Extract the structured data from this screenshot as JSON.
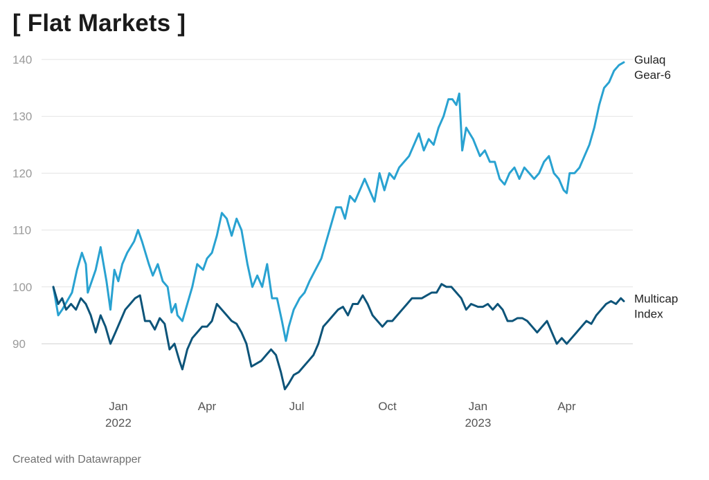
{
  "page": {
    "title": "[ Flat Markets ]",
    "footer": "Created with Datawrapper"
  },
  "chart_data": {
    "type": "line",
    "title": "[ Flat Markets ]",
    "xlabel": "",
    "ylabel": "",
    "ylim": [
      80,
      140
    ],
    "x_range": [
      "2021-10-27",
      "2023-05-29"
    ],
    "y_ticks": [
      90,
      100,
      110,
      120,
      130,
      140
    ],
    "x_ticks": [
      {
        "date": "2022-01-01",
        "label": "Jan",
        "year": "2022"
      },
      {
        "date": "2022-04-01",
        "label": "Apr",
        "year": ""
      },
      {
        "date": "2022-07-01",
        "label": "Jul",
        "year": ""
      },
      {
        "date": "2022-10-01",
        "label": "Oct",
        "year": ""
      },
      {
        "date": "2023-01-01",
        "label": "Jan",
        "year": "2023"
      },
      {
        "date": "2023-04-01",
        "label": "Apr",
        "year": ""
      }
    ],
    "grid": true,
    "legend": "direct labels at line ends (right)",
    "series": [
      {
        "name": "Gulaq Gear-6",
        "label_lines": [
          "Gulaq",
          "Gear-6"
        ],
        "color": "#29a2d1",
        "points": [
          [
            "2021-10-27",
            100
          ],
          [
            "2021-11-01",
            95
          ],
          [
            "2021-11-05",
            96
          ],
          [
            "2021-11-10",
            97.5
          ],
          [
            "2021-11-15",
            99
          ],
          [
            "2021-11-20",
            103
          ],
          [
            "2021-11-25",
            106
          ],
          [
            "2021-11-29",
            104
          ],
          [
            "2021-12-01",
            99
          ],
          [
            "2021-12-05",
            101
          ],
          [
            "2021-12-09",
            103
          ],
          [
            "2021-12-14",
            107
          ],
          [
            "2021-12-20",
            101
          ],
          [
            "2021-12-24",
            96
          ],
          [
            "2021-12-28",
            103
          ],
          [
            "2022-01-01",
            101
          ],
          [
            "2022-01-05",
            104
          ],
          [
            "2022-01-10",
            106
          ],
          [
            "2022-01-17",
            108
          ],
          [
            "2022-01-21",
            110
          ],
          [
            "2022-01-25",
            108
          ],
          [
            "2022-02-01",
            104
          ],
          [
            "2022-02-05",
            102
          ],
          [
            "2022-02-10",
            104
          ],
          [
            "2022-02-15",
            101
          ],
          [
            "2022-02-20",
            100
          ],
          [
            "2022-02-24",
            95.5
          ],
          [
            "2022-02-28",
            97
          ],
          [
            "2022-03-02",
            95
          ],
          [
            "2022-03-07",
            94
          ],
          [
            "2022-03-12",
            97
          ],
          [
            "2022-03-17",
            100
          ],
          [
            "2022-03-22",
            104
          ],
          [
            "2022-03-28",
            103
          ],
          [
            "2022-04-01",
            105
          ],
          [
            "2022-04-06",
            106
          ],
          [
            "2022-04-11",
            109
          ],
          [
            "2022-04-16",
            113
          ],
          [
            "2022-04-21",
            112
          ],
          [
            "2022-04-26",
            109
          ],
          [
            "2022-05-01",
            112
          ],
          [
            "2022-05-06",
            110
          ],
          [
            "2022-05-12",
            104
          ],
          [
            "2022-05-17",
            100
          ],
          [
            "2022-05-22",
            102
          ],
          [
            "2022-05-27",
            100
          ],
          [
            "2022-06-01",
            104
          ],
          [
            "2022-06-06",
            98
          ],
          [
            "2022-06-11",
            98
          ],
          [
            "2022-06-16",
            94
          ],
          [
            "2022-06-20",
            90.5
          ],
          [
            "2022-06-23",
            93
          ],
          [
            "2022-06-28",
            96
          ],
          [
            "2022-07-04",
            98
          ],
          [
            "2022-07-09",
            99
          ],
          [
            "2022-07-14",
            101
          ],
          [
            "2022-07-20",
            103
          ],
          [
            "2022-07-26",
            105
          ],
          [
            "2022-07-31",
            108
          ],
          [
            "2022-08-05",
            111
          ],
          [
            "2022-08-10",
            114
          ],
          [
            "2022-08-15",
            114
          ],
          [
            "2022-08-19",
            112
          ],
          [
            "2022-08-24",
            116
          ],
          [
            "2022-08-29",
            115
          ],
          [
            "2022-09-03",
            117
          ],
          [
            "2022-09-08",
            119
          ],
          [
            "2022-09-13",
            117
          ],
          [
            "2022-09-18",
            115
          ],
          [
            "2022-09-23",
            120
          ],
          [
            "2022-09-28",
            117
          ],
          [
            "2022-10-03",
            120
          ],
          [
            "2022-10-08",
            119
          ],
          [
            "2022-10-13",
            121
          ],
          [
            "2022-10-18",
            122
          ],
          [
            "2022-10-23",
            123
          ],
          [
            "2022-10-28",
            125
          ],
          [
            "2022-11-02",
            127
          ],
          [
            "2022-11-07",
            124
          ],
          [
            "2022-11-12",
            126
          ],
          [
            "2022-11-17",
            125
          ],
          [
            "2022-11-22",
            128
          ],
          [
            "2022-11-27",
            130
          ],
          [
            "2022-12-02",
            133
          ],
          [
            "2022-12-06",
            133
          ],
          [
            "2022-12-10",
            132
          ],
          [
            "2022-12-13",
            134
          ],
          [
            "2022-12-16",
            124
          ],
          [
            "2022-12-20",
            128
          ],
          [
            "2022-12-27",
            126
          ],
          [
            "2023-01-03",
            123
          ],
          [
            "2023-01-08",
            124
          ],
          [
            "2023-01-13",
            122
          ],
          [
            "2023-01-18",
            122
          ],
          [
            "2023-01-23",
            119
          ],
          [
            "2023-01-28",
            118
          ],
          [
            "2023-02-02",
            120
          ],
          [
            "2023-02-07",
            121
          ],
          [
            "2023-02-12",
            119
          ],
          [
            "2023-02-17",
            121
          ],
          [
            "2023-02-22",
            120
          ],
          [
            "2023-02-27",
            119
          ],
          [
            "2023-03-04",
            120
          ],
          [
            "2023-03-09",
            122
          ],
          [
            "2023-03-14",
            123
          ],
          [
            "2023-03-19",
            120
          ],
          [
            "2023-03-24",
            119
          ],
          [
            "2023-03-29",
            117
          ],
          [
            "2023-04-01",
            116.5
          ],
          [
            "2023-04-04",
            120
          ],
          [
            "2023-04-09",
            120
          ],
          [
            "2023-04-14",
            121
          ],
          [
            "2023-04-19",
            123
          ],
          [
            "2023-04-24",
            125
          ],
          [
            "2023-04-29",
            128
          ],
          [
            "2023-05-04",
            132
          ],
          [
            "2023-05-09",
            135
          ],
          [
            "2023-05-14",
            136
          ],
          [
            "2023-05-19",
            138
          ],
          [
            "2023-05-24",
            139
          ],
          [
            "2023-05-29",
            139.5
          ]
        ]
      },
      {
        "name": "Multicap Index",
        "label_lines": [
          "Multicap",
          "Index"
        ],
        "color": "#0d5479",
        "points": [
          [
            "2021-10-27",
            100
          ],
          [
            "2021-11-01",
            97
          ],
          [
            "2021-11-05",
            98
          ],
          [
            "2021-11-09",
            96
          ],
          [
            "2021-11-14",
            97
          ],
          [
            "2021-11-19",
            96
          ],
          [
            "2021-11-24",
            98
          ],
          [
            "2021-11-29",
            97
          ],
          [
            "2021-12-04",
            95
          ],
          [
            "2021-12-09",
            92
          ],
          [
            "2021-12-14",
            95
          ],
          [
            "2021-12-19",
            93
          ],
          [
            "2021-12-24",
            90
          ],
          [
            "2021-12-29",
            92
          ],
          [
            "2022-01-03",
            94
          ],
          [
            "2022-01-08",
            96
          ],
          [
            "2022-01-13",
            97
          ],
          [
            "2022-01-18",
            98
          ],
          [
            "2022-01-23",
            98.5
          ],
          [
            "2022-01-28",
            94
          ],
          [
            "2022-02-02",
            94
          ],
          [
            "2022-02-07",
            92.5
          ],
          [
            "2022-02-12",
            94.5
          ],
          [
            "2022-02-17",
            93.5
          ],
          [
            "2022-02-22",
            89
          ],
          [
            "2022-02-27",
            90
          ],
          [
            "2022-03-04",
            87
          ],
          [
            "2022-03-07",
            85.5
          ],
          [
            "2022-03-12",
            89
          ],
          [
            "2022-03-17",
            91
          ],
          [
            "2022-03-22",
            92
          ],
          [
            "2022-03-27",
            93
          ],
          [
            "2022-04-01",
            93
          ],
          [
            "2022-04-06",
            94
          ],
          [
            "2022-04-11",
            97
          ],
          [
            "2022-04-16",
            96
          ],
          [
            "2022-04-21",
            95
          ],
          [
            "2022-04-26",
            94
          ],
          [
            "2022-05-01",
            93.5
          ],
          [
            "2022-05-06",
            92
          ],
          [
            "2022-05-11",
            90
          ],
          [
            "2022-05-16",
            86
          ],
          [
            "2022-05-21",
            86.5
          ],
          [
            "2022-05-26",
            87
          ],
          [
            "2022-05-31",
            88
          ],
          [
            "2022-06-05",
            89
          ],
          [
            "2022-06-10",
            88
          ],
          [
            "2022-06-15",
            85
          ],
          [
            "2022-06-19",
            82
          ],
          [
            "2022-06-23",
            83
          ],
          [
            "2022-06-28",
            84.5
          ],
          [
            "2022-07-03",
            85
          ],
          [
            "2022-07-08",
            86
          ],
          [
            "2022-07-13",
            87
          ],
          [
            "2022-07-18",
            88
          ],
          [
            "2022-07-23",
            90
          ],
          [
            "2022-07-28",
            93
          ],
          [
            "2022-08-02",
            94
          ],
          [
            "2022-08-07",
            95
          ],
          [
            "2022-08-12",
            96
          ],
          [
            "2022-08-17",
            96.5
          ],
          [
            "2022-08-22",
            95
          ],
          [
            "2022-08-27",
            97
          ],
          [
            "2022-09-01",
            97
          ],
          [
            "2022-09-06",
            98.5
          ],
          [
            "2022-09-11",
            97
          ],
          [
            "2022-09-16",
            95
          ],
          [
            "2022-09-21",
            94
          ],
          [
            "2022-09-26",
            93
          ],
          [
            "2022-10-01",
            94
          ],
          [
            "2022-10-06",
            94
          ],
          [
            "2022-10-11",
            95
          ],
          [
            "2022-10-16",
            96
          ],
          [
            "2022-10-21",
            97
          ],
          [
            "2022-10-26",
            98
          ],
          [
            "2022-10-31",
            98
          ],
          [
            "2022-11-05",
            98
          ],
          [
            "2022-11-10",
            98.5
          ],
          [
            "2022-11-15",
            99
          ],
          [
            "2022-11-20",
            99
          ],
          [
            "2022-11-25",
            100.5
          ],
          [
            "2022-11-30",
            100
          ],
          [
            "2022-12-05",
            100
          ],
          [
            "2022-12-10",
            99
          ],
          [
            "2022-12-15",
            98
          ],
          [
            "2022-12-20",
            96
          ],
          [
            "2022-12-25",
            97
          ],
          [
            "2023-01-01",
            96.5
          ],
          [
            "2023-01-06",
            96.5
          ],
          [
            "2023-01-11",
            97
          ],
          [
            "2023-01-16",
            96
          ],
          [
            "2023-01-21",
            97
          ],
          [
            "2023-01-26",
            96
          ],
          [
            "2023-01-31",
            94
          ],
          [
            "2023-02-05",
            94
          ],
          [
            "2023-02-10",
            94.5
          ],
          [
            "2023-02-15",
            94.5
          ],
          [
            "2023-02-20",
            94
          ],
          [
            "2023-02-25",
            93
          ],
          [
            "2023-03-02",
            92
          ],
          [
            "2023-03-07",
            93
          ],
          [
            "2023-03-12",
            94
          ],
          [
            "2023-03-17",
            92
          ],
          [
            "2023-03-22",
            90
          ],
          [
            "2023-03-27",
            91
          ],
          [
            "2023-04-01",
            90
          ],
          [
            "2023-04-06",
            91
          ],
          [
            "2023-04-11",
            92
          ],
          [
            "2023-04-16",
            93
          ],
          [
            "2023-04-21",
            94
          ],
          [
            "2023-04-26",
            93.5
          ],
          [
            "2023-05-01",
            95
          ],
          [
            "2023-05-06",
            96
          ],
          [
            "2023-05-11",
            97
          ],
          [
            "2023-05-16",
            97.5
          ],
          [
            "2023-05-21",
            97
          ],
          [
            "2023-05-26",
            98
          ],
          [
            "2023-05-29",
            97.5
          ]
        ]
      }
    ]
  }
}
